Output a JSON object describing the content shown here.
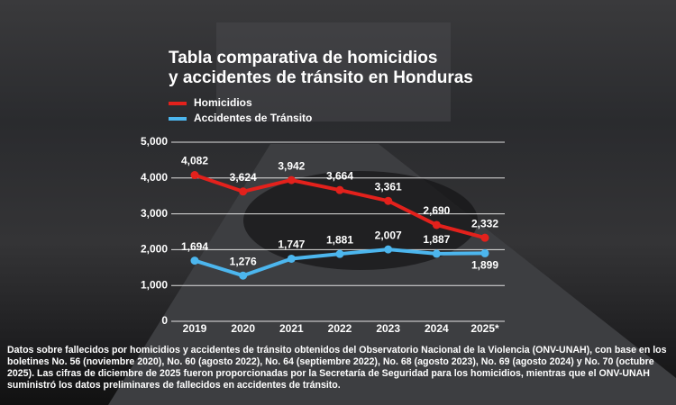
{
  "chart_data": {
    "type": "line",
    "title": [
      "Tabla comparativa de homicidios",
      "y accidentes de tránsito en Honduras"
    ],
    "categories": [
      "2019",
      "2020",
      "2021",
      "2022",
      "2023",
      "2024",
      "2025*"
    ],
    "series": [
      {
        "name": "Homicidios",
        "color": "#e3211c",
        "values": [
          4082,
          3624,
          3942,
          3664,
          3361,
          2690,
          2332
        ],
        "value_labels": [
          "4,082",
          "3,624",
          "3,942",
          "3,664",
          "3,361",
          "2,690",
          "2,332"
        ]
      },
      {
        "name": "Accidentes de Tránsito",
        "color": "#4cb6ee",
        "values": [
          1694,
          1276,
          1747,
          1881,
          2007,
          1887,
          1899
        ],
        "value_labels": [
          "1,694",
          "1,276",
          "1,747",
          "1,881",
          "2,007",
          "1,887",
          "1,899"
        ]
      }
    ],
    "ylim": [
      0,
      5000
    ],
    "yticks": [
      0,
      {
        "value": 1000,
        "label": "1,000"
      },
      {
        "value": 2000,
        "label": "2,000"
      },
      {
        "value": 3000,
        "label": "3,000"
      },
      {
        "value": 4000,
        "label": "4,000"
      },
      {
        "value": 5000,
        "label": "5,000"
      }
    ],
    "grid": true,
    "note": "Datos sobre fallecidos por homicidios y accidentes de tránsito obtenidos del Observatorio Nacional de la Violencia (ONV-UNAH), con base en los boletines No. 56 (noviembre 2020), No. 60 (agosto 2022), No. 64 (septiembre 2022), No. 68 (agosto 2023), No. 69 (agosto 2024) y No. 70 (octubre 2025). Las cifras de diciembre de 2025 fueron proporcionadas por la Secretaría de Seguridad para los homicidios, mientras que el ONV-UNAH suministró los datos preliminares de fallecidos en accidentes de tránsito."
  }
}
